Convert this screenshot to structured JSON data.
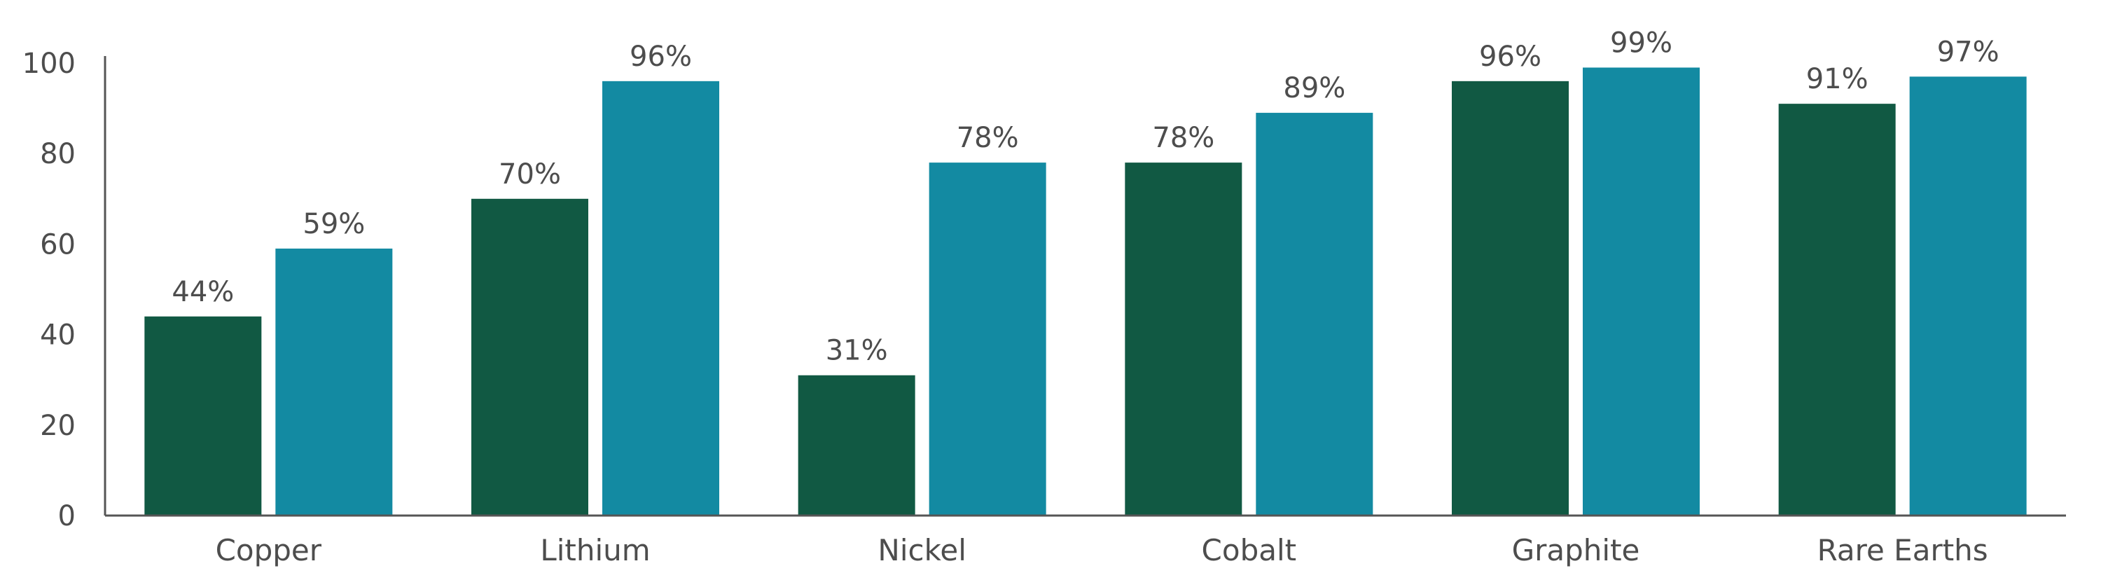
{
  "chart_data": {
    "type": "bar",
    "title": "",
    "xlabel": "",
    "ylabel": "",
    "ylim": [
      0,
      100
    ],
    "yticks": [
      0,
      20,
      40,
      60,
      80,
      100
    ],
    "grid": false,
    "categories": [
      "Copper",
      "Lithium",
      "Nickel",
      "Cobalt",
      "Graphite",
      "Rare Earths"
    ],
    "series": [
      {
        "color": "#115943",
        "values": [
          44,
          70,
          31,
          78,
          96,
          91
        ],
        "labels": [
          "44%",
          "70%",
          "31%",
          "78%",
          "96%",
          "91%"
        ]
      },
      {
        "color": "#138aa2",
        "values": [
          59,
          96,
          78,
          89,
          99,
          97
        ],
        "labels": [
          "59%",
          "96%",
          "78%",
          "89%",
          "99%",
          "97%"
        ]
      }
    ]
  }
}
